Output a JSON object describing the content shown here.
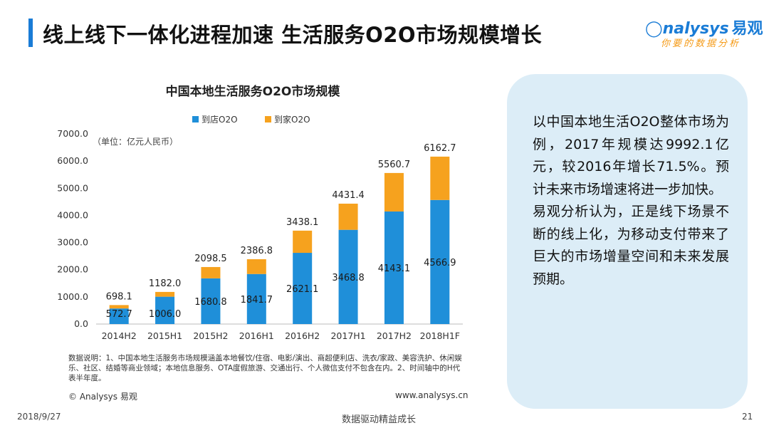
{
  "header": {
    "title": "线上线下一体化进程加速  生活服务O2O市场规模增长",
    "logo_text": "nalysys",
    "logo_cn": "易观",
    "logo_slogan": "你要的数据分析",
    "accent_color": "#1a7cd6"
  },
  "chart_data": {
    "type": "bar",
    "stacked": true,
    "title": "中国本地生活服务O2O市场规模",
    "unit_label": "（单位：亿元人民币）",
    "categories": [
      "2014H2",
      "2015H1",
      "2015H2",
      "2016H1",
      "2016H2",
      "2017H1",
      "2017H2",
      "2018H1F"
    ],
    "series": [
      {
        "name": "到店O2O",
        "color": "#1f8fd9",
        "values": [
          572.7,
          1006.0,
          1680.8,
          1841.7,
          2621.1,
          3468.8,
          4143.1,
          4566.9
        ]
      },
      {
        "name": "到家O2O",
        "color": "#f6a21e",
        "values": [
          125.4,
          176.0,
          417.7,
          545.1,
          817.0,
          962.6,
          1417.6,
          1595.8
        ]
      }
    ],
    "inner_labels": [
      "572.7",
      "1006.0",
      "1680.8",
      "1841.7",
      "2621.1",
      "3468.8",
      "4143.1",
      "4566.9"
    ],
    "totals": [
      "698.1",
      "1182.0",
      "2098.5",
      "2386.8",
      "3438.1",
      "4431.4",
      "5560.7",
      "6162.7"
    ],
    "total_values": [
      698.1,
      1182.0,
      2098.5,
      2386.8,
      3438.1,
      4431.4,
      5560.7,
      6162.7
    ],
    "ylim": [
      0,
      7000
    ],
    "yticks": [
      "0.0",
      "1000.0",
      "2000.0",
      "3000.0",
      "4000.0",
      "5000.0",
      "6000.0",
      "7000.0"
    ],
    "ytick_values": [
      0,
      1000,
      2000,
      3000,
      4000,
      5000,
      6000,
      7000
    ],
    "legend_position": "top",
    "grid": false,
    "xlabel": "",
    "ylabel": ""
  },
  "notes": {
    "data_note": "数据说明：1、中国本地生活服务市场规模涵盖本地餐饮/住宿、电影/演出、商超便利店、洗衣/家政、美容洗护、休闲娱乐、社区、结婚等商业领域；本地信息服务、OTA度假旅游、交通出行、个人微信支付不包含在内。2、时间轴中的H代表半年度。",
    "copyright": "© Analysys 易观",
    "url": "www.analysys.cn"
  },
  "side_panel": {
    "paragraph1": "以中国本地生活O2O整体市场为例，2017年规模达9992.1亿元，较2016年增长71.5%。预计未来市场增速将进一步加快。",
    "paragraph2": "易观分析认为，正是线下场景不断的线上化，为移动支付带来了巨大的市场增量空间和未来发展预期。"
  },
  "footer": {
    "date": "2018/9/27",
    "slogan": "数据驱动精益成长",
    "page": "21"
  }
}
